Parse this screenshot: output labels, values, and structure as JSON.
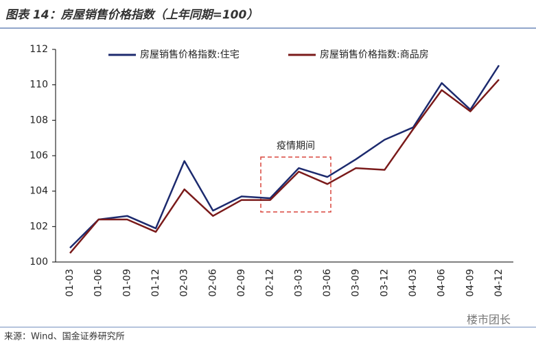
{
  "chart_data": {
    "type": "line",
    "title": "图表 14：房屋销售价格指数（上年同期=100）",
    "source": "来源：Wind、国金证券研究所",
    "watermark": "楼市团长",
    "annotation": "疫情期间",
    "categories": [
      "01-03",
      "01-06",
      "01-09",
      "01-12",
      "02-03",
      "02-06",
      "02-09",
      "02-12",
      "03-03",
      "03-06",
      "03-09",
      "03-12",
      "04-03",
      "04-06",
      "04-09",
      "04-12"
    ],
    "series": [
      {
        "name": "房屋销售价格指数:住宅",
        "color": "#1c2a6e",
        "values": [
          100.8,
          102.4,
          102.6,
          101.9,
          105.7,
          102.9,
          103.7,
          103.6,
          105.3,
          104.8,
          105.8,
          106.9,
          107.6,
          110.1,
          108.6,
          111.1
        ]
      },
      {
        "name": "房屋销售价格指数:商品房",
        "color": "#7a1a1a",
        "values": [
          100.5,
          102.4,
          102.4,
          101.7,
          104.1,
          102.6,
          103.5,
          103.5,
          105.1,
          104.4,
          105.3,
          105.2,
          107.5,
          109.7,
          108.5,
          110.3
        ]
      }
    ],
    "ylim": [
      100,
      112
    ],
    "yticks": [
      100,
      102,
      104,
      106,
      108,
      110,
      112
    ],
    "grid": false,
    "legend": "top"
  }
}
